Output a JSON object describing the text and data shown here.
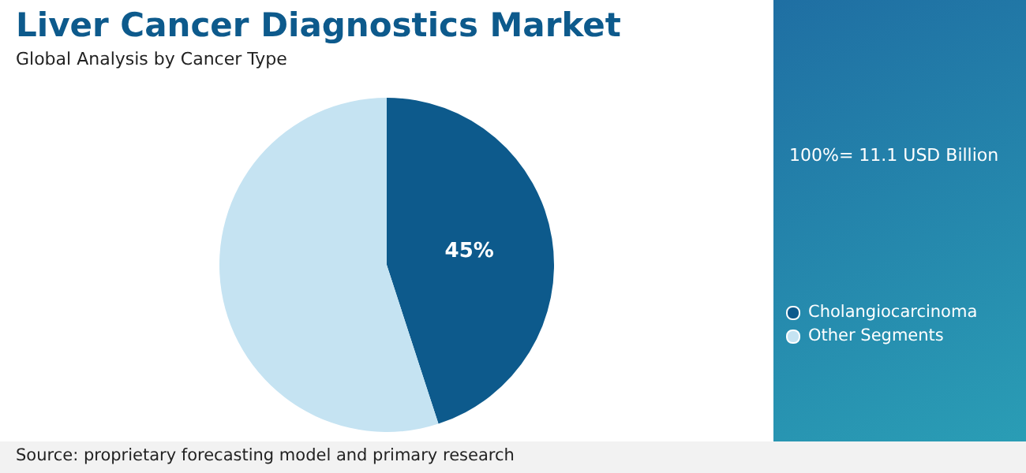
{
  "chart_data": {
    "type": "pie",
    "title": "Liver Cancer Diagnostics Market",
    "subtitle": "Global Analysis by Cancer Type",
    "categories": [
      "Cholangiocarcinoma",
      "Other Segments"
    ],
    "values": [
      45,
      55
    ],
    "colors": [
      "#0d5a8c",
      "#c5e3f2"
    ],
    "value_labels": [
      "45%",
      null
    ],
    "legend": "right",
    "annotations": [
      "100%= 11.1 USD Billion",
      "Source: proprietary forecasting model and primary research"
    ]
  }
}
